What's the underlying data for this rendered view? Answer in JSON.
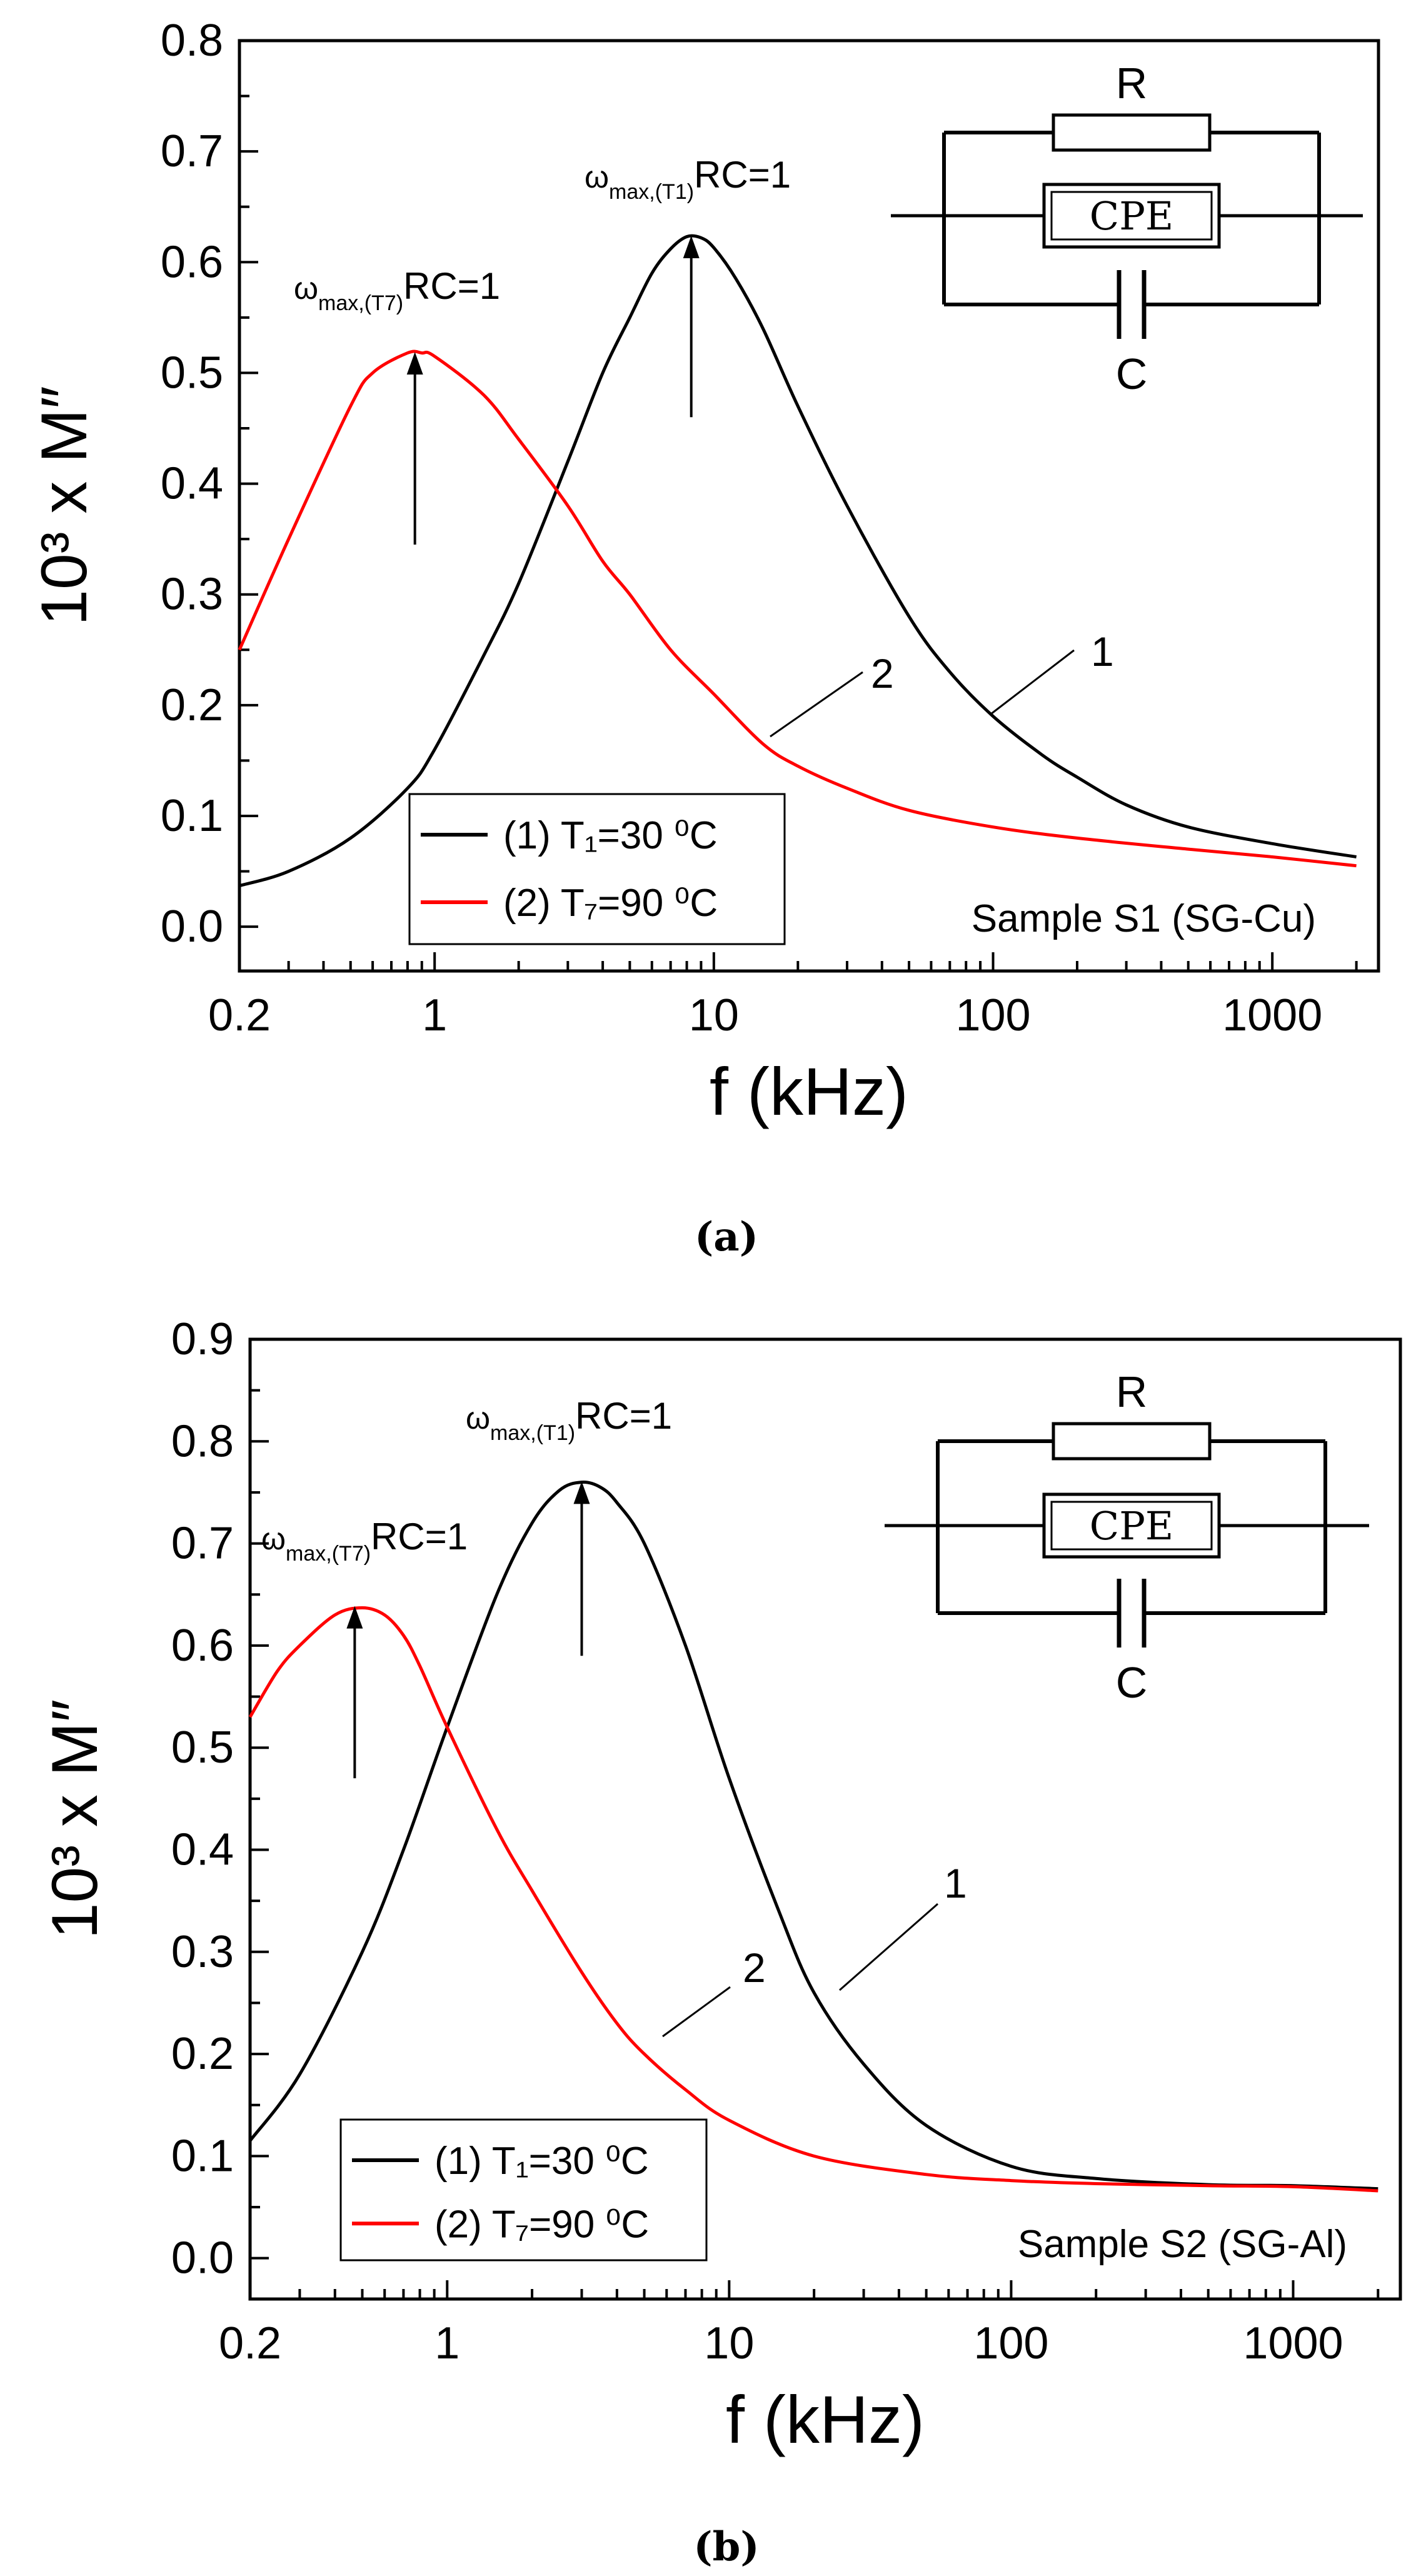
{
  "chart_data": [
    {
      "type": "line",
      "panel_label": "(a)",
      "xlabel": "f (kHz)",
      "ylabel": "10³ x M″",
      "xscale": "log",
      "xlim": [
        0.2,
        2400
      ],
      "ylim": [
        -0.04,
        0.8
      ],
      "x_ticks": [
        0.2,
        1,
        10,
        100,
        1000
      ],
      "x_tick_labels": [
        "0.2",
        "1",
        "10",
        "100",
        "1000"
      ],
      "y_ticks": [
        0.0,
        0.1,
        0.2,
        0.3,
        0.4,
        0.5,
        0.6,
        0.7,
        0.8
      ],
      "y_tick_labels": [
        "0.0",
        "0.1",
        "0.2",
        "0.3",
        "0.4",
        "0.5",
        "0.6",
        "0.7",
        "0.8"
      ],
      "sample_label": "Sample S1 (SG-Cu)",
      "legend": {
        "position": "bottom-left",
        "entries": [
          "(1) T₁=30 ⁰C",
          "(2) T₇=90 ⁰C"
        ]
      },
      "series": [
        {
          "name": "(1) T₁=30 ⁰C",
          "color": "#000000",
          "curve_label": "1",
          "x": [
            0.2,
            0.3,
            0.5,
            0.8,
            1,
            1.5,
            2,
            3,
            4,
            5,
            6,
            7,
            8,
            9,
            10,
            12,
            15,
            20,
            30,
            50,
            70,
            100,
            150,
            200,
            300,
            500,
            1000,
            2000
          ],
          "values": [
            0.037,
            0.05,
            0.08,
            0.125,
            0.16,
            0.245,
            0.31,
            0.42,
            0.5,
            0.55,
            0.59,
            0.612,
            0.623,
            0.622,
            0.613,
            0.585,
            0.54,
            0.47,
            0.38,
            0.28,
            0.23,
            0.19,
            0.155,
            0.135,
            0.11,
            0.09,
            0.075,
            0.063
          ]
        },
        {
          "name": "(2) T₇=90 ⁰C",
          "color": "#ff0000",
          "curve_label": "2",
          "x": [
            0.2,
            0.3,
            0.5,
            0.6,
            0.8,
            0.9,
            1,
            1.5,
            2,
            3,
            4,
            5,
            7,
            10,
            15,
            20,
            30,
            50,
            100,
            200,
            500,
            1000,
            2000
          ],
          "values": [
            0.25,
            0.35,
            0.47,
            0.5,
            0.518,
            0.518,
            0.515,
            0.48,
            0.44,
            0.38,
            0.33,
            0.3,
            0.25,
            0.21,
            0.165,
            0.145,
            0.125,
            0.105,
            0.09,
            0.08,
            0.07,
            0.063,
            0.055
          ]
        }
      ],
      "annotations": [
        {
          "label_main": "ω",
          "label_sub": "max,(T1)",
          "label_tail": "RC=1",
          "arrow_x": 8.3,
          "arrow_from_y": 0.46,
          "arrow_to_y": 0.625
        },
        {
          "label_main": "ω",
          "label_sub": "max,(T7)",
          "label_tail": "RC=1",
          "arrow_x": 0.85,
          "arrow_from_y": 0.345,
          "arrow_to_y": 0.52
        }
      ],
      "inset_circuit": {
        "elements": [
          "R",
          "CPE",
          "C"
        ]
      }
    },
    {
      "type": "line",
      "panel_label": "(b)",
      "xlabel": "f (kHz)",
      "ylabel": "10³ x M″",
      "xscale": "log",
      "xlim": [
        0.2,
        2400
      ],
      "ylim": [
        -0.04,
        0.9
      ],
      "x_ticks": [
        0.2,
        1,
        10,
        100,
        1000
      ],
      "x_tick_labels": [
        "0.2",
        "1",
        "10",
        "100",
        "1000"
      ],
      "y_ticks": [
        0.0,
        0.1,
        0.2,
        0.3,
        0.4,
        0.5,
        0.6,
        0.7,
        0.8,
        0.9
      ],
      "y_tick_labels": [
        "0.0",
        "0.1",
        "0.2",
        "0.3",
        "0.4",
        "0.5",
        "0.6",
        "0.7",
        "0.8",
        "0.9"
      ],
      "sample_label": "Sample S2 (SG-Al)",
      "legend": {
        "position": "bottom-left",
        "entries": [
          "(1) T₁=30 ⁰C",
          "(2) T₇=90 ⁰C"
        ]
      },
      "series": [
        {
          "name": "(1) T₁=30 ⁰C",
          "color": "#000000",
          "curve_label": "1",
          "x": [
            0.2,
            0.3,
            0.5,
            0.7,
            1,
            1.5,
            2,
            2.5,
            3,
            3.5,
            4,
            5,
            7,
            10,
            15,
            20,
            30,
            50,
            100,
            200,
            500,
            1000,
            2000
          ],
          "values": [
            0.115,
            0.18,
            0.3,
            0.4,
            0.52,
            0.65,
            0.72,
            0.752,
            0.76,
            0.755,
            0.74,
            0.7,
            0.6,
            0.47,
            0.34,
            0.26,
            0.19,
            0.13,
            0.09,
            0.078,
            0.072,
            0.071,
            0.068
          ]
        },
        {
          "name": "(2) T₇=90 ⁰C",
          "color": "#ff0000",
          "curve_label": "2",
          "x": [
            0.2,
            0.25,
            0.3,
            0.4,
            0.5,
            0.6,
            0.7,
            0.8,
            1,
            1.5,
            2,
            3,
            4,
            5,
            7,
            10,
            20,
            50,
            100,
            200,
            500,
            1000,
            2000
          ],
          "values": [
            0.53,
            0.575,
            0.6,
            0.63,
            0.637,
            0.63,
            0.61,
            0.58,
            0.52,
            0.42,
            0.36,
            0.28,
            0.23,
            0.2,
            0.165,
            0.135,
            0.1,
            0.082,
            0.076,
            0.073,
            0.071,
            0.07,
            0.066
          ]
        }
      ],
      "annotations": [
        {
          "label_main": "ω",
          "label_sub": "max,(T1)",
          "label_tail": "RC=1",
          "arrow_x": 3.0,
          "arrow_from_y": 0.59,
          "arrow_to_y": 0.762
        },
        {
          "label_main": "ω",
          "label_sub": "max,(T7)",
          "label_tail": "RC=1",
          "arrow_x": 0.47,
          "arrow_from_y": 0.47,
          "arrow_to_y": 0.64
        }
      ],
      "inset_circuit": {
        "elements": [
          "R",
          "CPE",
          "C"
        ]
      }
    }
  ],
  "colors": {
    "series_1": "#000000",
    "series_2": "#ff0000"
  }
}
